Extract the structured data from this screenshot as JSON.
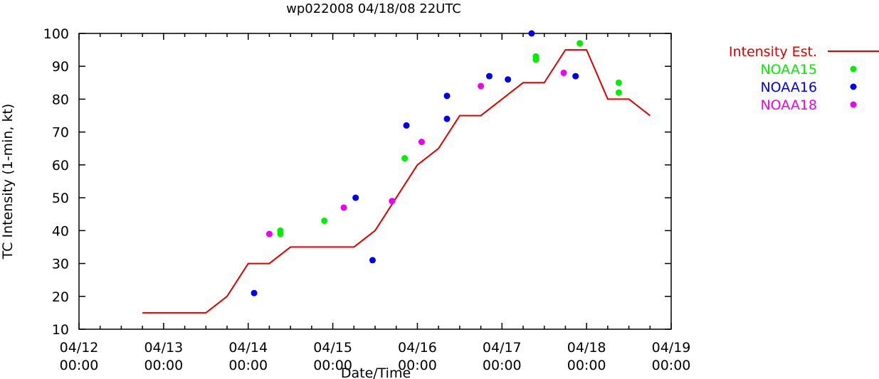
{
  "chart_data": {
    "type": "scatter",
    "title": "wp022008 04/18/08 22UTC",
    "xlabel": "Date/Time",
    "ylabel": "TC Intensity (1-min, kt)",
    "ylim": [
      10,
      100
    ],
    "yticks": [
      10,
      20,
      30,
      40,
      50,
      60,
      70,
      80,
      90,
      100
    ],
    "xlim": [
      0,
      7
    ],
    "xticks": [
      {
        "value": 0,
        "date": "04/12",
        "time": "00:00"
      },
      {
        "value": 1,
        "date": "04/13",
        "time": "00:00"
      },
      {
        "value": 2,
        "date": "04/14",
        "time": "00:00"
      },
      {
        "value": 3,
        "date": "04/15",
        "time": "00:00"
      },
      {
        "value": 4,
        "date": "04/16",
        "time": "00:00"
      },
      {
        "value": 5,
        "date": "04/17",
        "time": "00:00"
      },
      {
        "value": 6,
        "date": "04/18",
        "time": "00:00"
      },
      {
        "value": 7,
        "date": "04/19",
        "time": "00:00"
      }
    ],
    "legend_position": "right",
    "series": [
      {
        "name": "Intensity Est.",
        "kind": "line",
        "color": "#e00000",
        "points": [
          [
            0.75,
            15
          ],
          [
            1.5,
            15
          ],
          [
            1.75,
            20
          ],
          [
            2.0,
            30
          ],
          [
            2.25,
            30
          ],
          [
            2.5,
            35
          ],
          [
            3.0,
            35
          ],
          [
            3.25,
            35
          ],
          [
            3.5,
            40
          ],
          [
            3.75,
            50
          ],
          [
            4.0,
            60
          ],
          [
            4.25,
            65
          ],
          [
            4.5,
            75
          ],
          [
            4.75,
            75
          ],
          [
            5.0,
            80
          ],
          [
            5.25,
            85
          ],
          [
            5.5,
            85
          ],
          [
            5.75,
            95
          ],
          [
            6.0,
            95
          ],
          [
            6.25,
            80
          ],
          [
            6.5,
            80
          ],
          [
            6.75,
            75
          ]
        ]
      },
      {
        "name": "NOAA15",
        "kind": "points",
        "color": "#00ee00",
        "points": [
          [
            2.38,
            40
          ],
          [
            2.38,
            39
          ],
          [
            2.9,
            43
          ],
          [
            3.85,
            62
          ],
          [
            5.4,
            93
          ],
          [
            5.4,
            92
          ],
          [
            5.92,
            97
          ],
          [
            6.38,
            85
          ],
          [
            6.38,
            82
          ]
        ]
      },
      {
        "name": "NOAA16",
        "kind": "points",
        "color": "#0000ee",
        "points": [
          [
            2.07,
            21
          ],
          [
            3.27,
            50
          ],
          [
            3.47,
            31
          ],
          [
            3.87,
            72
          ],
          [
            4.35,
            81
          ],
          [
            4.35,
            74
          ],
          [
            4.85,
            87
          ],
          [
            5.07,
            86
          ],
          [
            5.35,
            100
          ],
          [
            5.87,
            87
          ]
        ]
      },
      {
        "name": "NOAA18",
        "kind": "points",
        "color": "#ee00ee",
        "points": [
          [
            2.25,
            39
          ],
          [
            3.13,
            47
          ],
          [
            3.7,
            49
          ],
          [
            4.05,
            67
          ],
          [
            4.75,
            84
          ],
          [
            5.73,
            88
          ]
        ]
      }
    ]
  }
}
